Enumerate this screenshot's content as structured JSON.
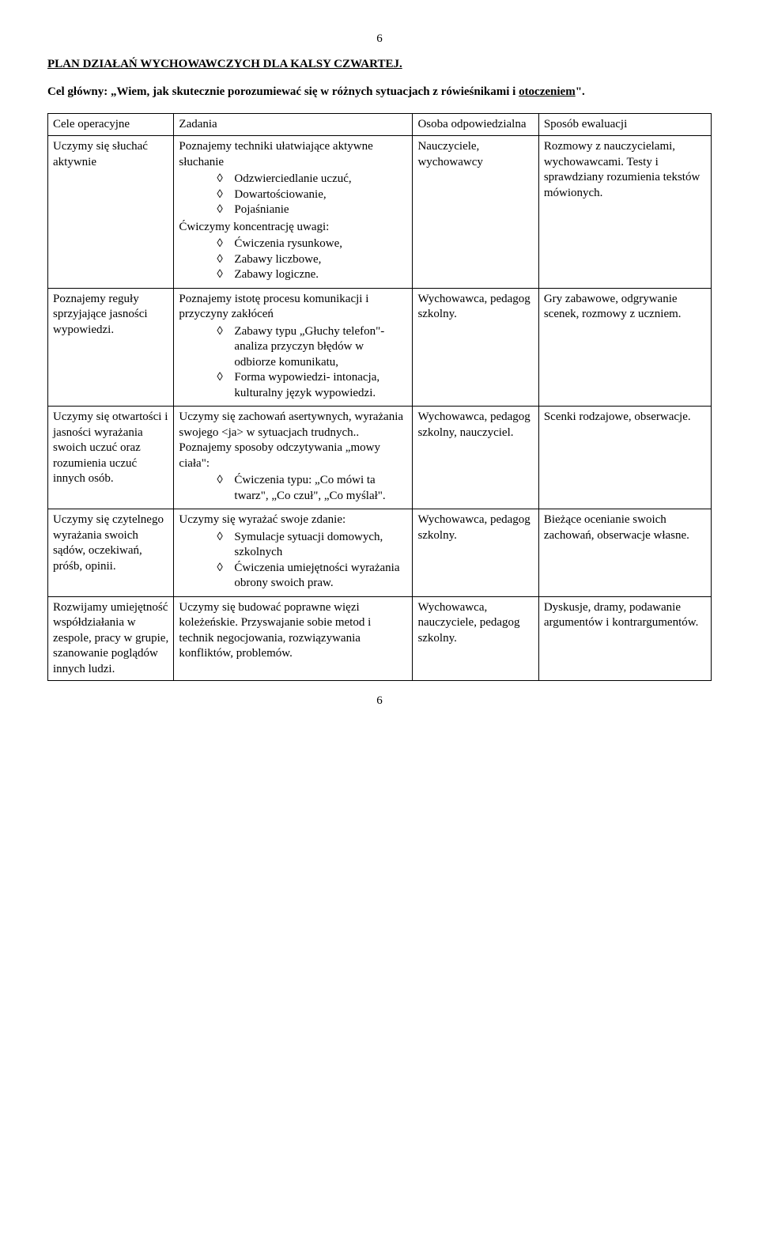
{
  "page_number_top": "6",
  "page_number_bottom": "6",
  "heading": "PLAN DZIAŁAŃ WYCHOWAWCZYCH DLA KALSY CZWARTEJ.",
  "subheading_prefix": "Cel główny: „Wiem, jak skutecznie porozumiewać się w różnych sytuacjach z rówieśnikami i",
  "subheading_underline": "otoczeniem",
  "subheading_suffix": "\".",
  "header": {
    "c0": "Cele operacyjne",
    "c1": "Zadania",
    "c2": "Osoba odpowiedzialna",
    "c3": "Sposób ewaluacji"
  },
  "rows": [
    {
      "c0": "Uczymy się słuchać aktywnie",
      "c1_before": "Poznajemy techniki ułatwiające aktywne słuchanie",
      "c1_bullets1": [
        "Odzwierciedlanie uczuć,",
        "Dowartościowanie,",
        "Pojaśnianie"
      ],
      "c1_mid": "Ćwiczymy koncentrację uwagi:",
      "c1_bullets2": [
        "Ćwiczenia rysunkowe,",
        "Zabawy liczbowe,",
        "Zabawy logiczne."
      ],
      "c2": "Nauczyciele, wychowawcy",
      "c3": "Rozmowy z nauczycielami, wychowawcami. Testy i sprawdziany rozumienia tekstów mówionych."
    },
    {
      "c0": "Poznajemy reguły sprzyjające jasności wypowiedzi.",
      "c1_before": "Poznajemy istotę procesu komunikacji i przyczyny zakłóceń",
      "c1_bullets1": [
        "Zabawy typu „Głuchy telefon\"- analiza przyczyn błędów w odbiorze komunikatu,",
        "Forma wypowiedzi- intonacja, kulturalny język wypowiedzi."
      ],
      "c2": "Wychowawca, pedagog szkolny.",
      "c3": "Gry zabawowe, odgrywanie scenek, rozmowy z uczniem."
    },
    {
      "c0": "Uczymy się otwartości i jasności wyrażania swoich uczuć oraz rozumienia uczuć innych osób.",
      "c1_before": "Uczymy się zachowań asertywnych, wyrażania swojego <ja> w sytuacjach trudnych.. Poznajemy sposoby odczytywania „mowy ciała\":",
      "c1_bullets1": [
        "Ćwiczenia typu: „Co mówi ta  twarz\", „Co czuł\", „Co myślał\"."
      ],
      "c2": "Wychowawca, pedagog szkolny, nauczyciel.",
      "c3": "Scenki rodzajowe, obserwacje."
    },
    {
      "c0": "Uczymy się czytelnego wyrażania swoich sądów, oczekiwań, próśb, opinii.",
      "c1_before": "Uczymy się wyrażać swoje zdanie:",
      "c1_bullets1": [
        "Symulacje sytuacji domowych, szkolnych",
        "Ćwiczenia umiejętności wyrażania obrony swoich praw."
      ],
      "c2": "Wychowawca, pedagog szkolny.",
      "c3": "Bieżące ocenianie swoich zachowań, obserwacje własne."
    },
    {
      "c0": "Rozwijamy umiejętność współdziałania w zespole, pracy w grupie, szanowanie poglądów innych ludzi.",
      "c1_before": "Uczymy się budować poprawne więzi koleżeńskie. Przyswajanie sobie metod i technik negocjowania, rozwiązywania konfliktów, problemów.",
      "c2": "Wychowawca, nauczyciele, pedagog szkolny.",
      "c3": "Dyskusje, dramy, podawanie argumentów i kontrargumentów."
    }
  ]
}
